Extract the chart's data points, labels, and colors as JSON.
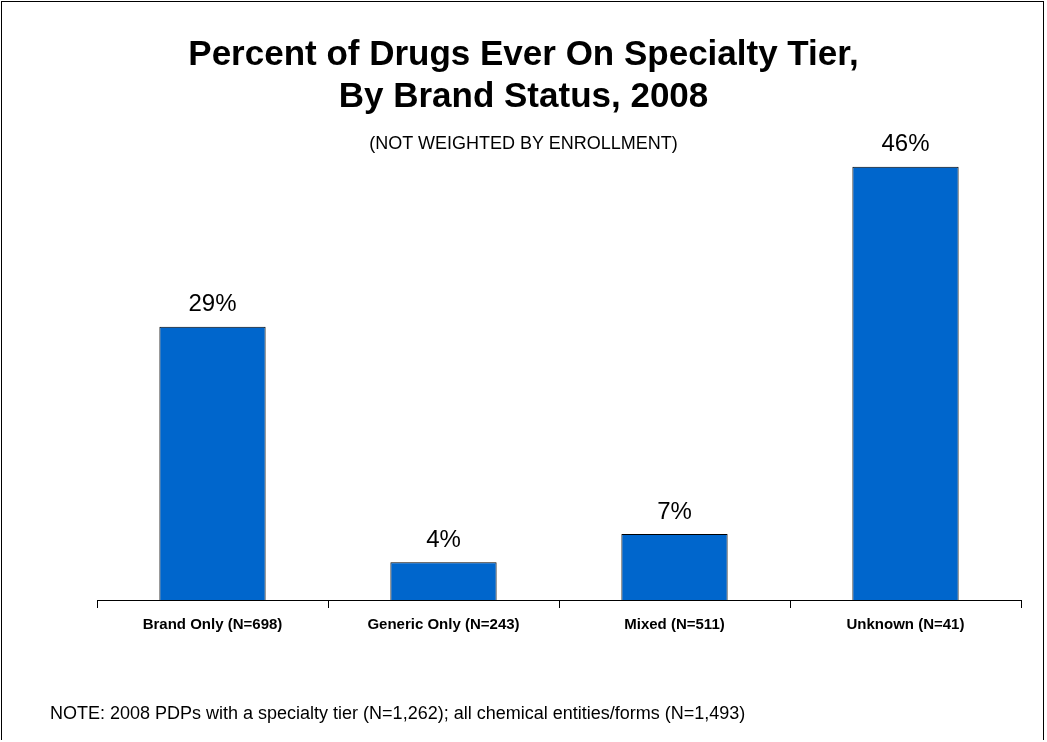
{
  "chart_data": {
    "type": "bar",
    "title": "Percent of Drugs Ever On Specialty Tier,\nBy Brand Status, 2008",
    "subtitle": "(NOT WEIGHTED BY ENROLLMENT)",
    "categories": [
      "Brand Only (N=698)",
      "Generic Only (N=243)",
      "Mixed (N=511)",
      "Unknown (N=41)"
    ],
    "values": [
      29,
      4,
      7,
      46
    ],
    "color": "#0066cc",
    "data_labels": true,
    "value_labels": [
      "29%",
      "4%",
      "7%",
      "46%"
    ],
    "annotations": [
      "NOTE: 2008 PDPs with a specialty tier (N=1,262); all chemical entities/forms (N=1,493)"
    ],
    "grid": false,
    "legend": false
  }
}
